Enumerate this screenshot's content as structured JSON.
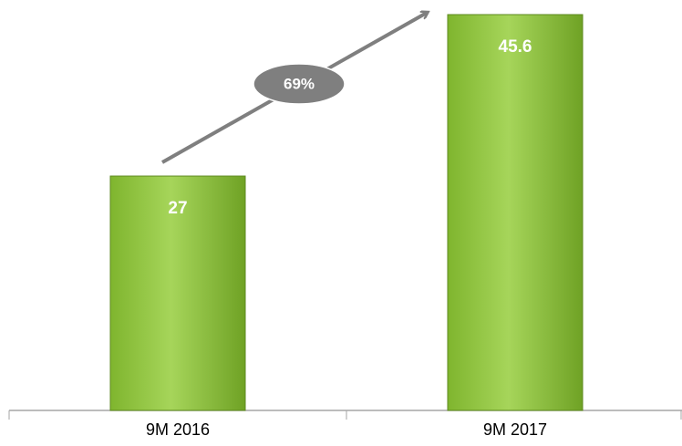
{
  "chart_data": {
    "type": "bar",
    "categories": [
      "9M 2016",
      "9M 2017"
    ],
    "values": [
      27,
      45.6
    ],
    "color": "#92c83e",
    "annotation": "69%"
  }
}
